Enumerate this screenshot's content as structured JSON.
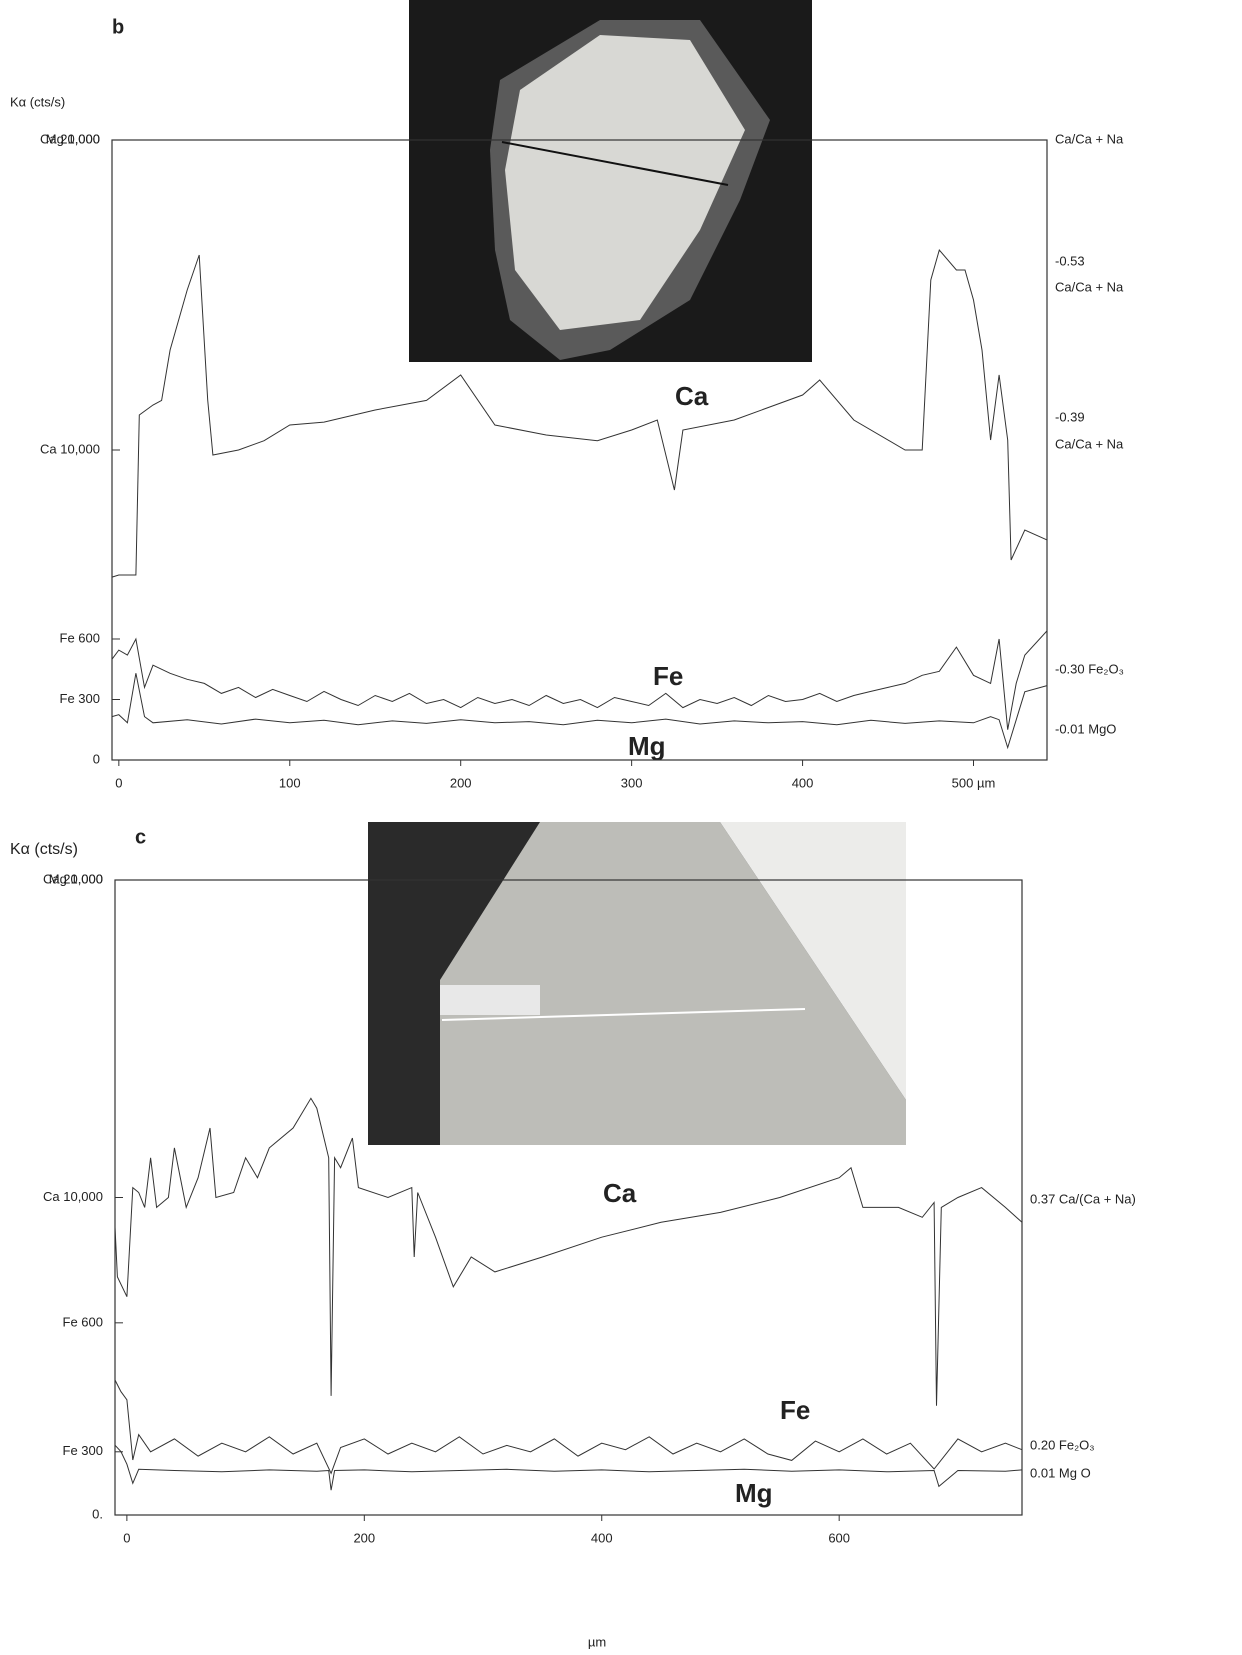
{
  "chart_data": [
    {
      "type": "line",
      "panel": "b",
      "y_label": "Kα (cts/s)",
      "xlim": [
        -4,
        543
      ],
      "xticks": [
        0,
        100,
        200,
        300,
        400,
        {
          "value": 500,
          "label": "500 µm"
        }
      ],
      "ylim": [
        0,
        20000
      ],
      "yticks": [
        {
          "value": 20000,
          "label": "Ca 20,000"
        },
        {
          "value": 10000,
          "label": "Ca 10,000"
        },
        0
      ],
      "fe_ylim": [
        0,
        3074
      ],
      "fe_yticks": [
        {
          "value": 600,
          "label": "Fe 600"
        },
        {
          "value": 300,
          "label": "Fe 300"
        }
      ],
      "mg_ylim": [
        0,
        1000
      ],
      "mg_yticks": [
        {
          "value": 1000,
          "label": "Mg 1,000"
        }
      ],
      "right_labels": [
        "Ca/Ca + Na",
        "-0.53",
        "Ca/Ca + Na",
        "-0.39",
        "Ca/Ca + Na",
        "-0.30 Fe₂O₃",
        "-0.01 MgO"
      ],
      "series": [
        {
          "name": "Ca",
          "color": "#333",
          "x": [
            -4,
            0,
            10,
            12,
            20,
            25,
            30,
            40,
            47,
            52,
            55,
            70,
            85,
            100,
            120,
            150,
            180,
            200,
            220,
            250,
            280,
            300,
            315,
            325,
            330,
            360,
            400,
            410,
            430,
            460,
            470,
            475,
            480,
            490,
            495,
            500,
            505,
            510,
            515,
            520,
            522,
            530,
            543
          ],
          "values": [
            5900,
            5968,
            5968,
            11129,
            11452,
            11600,
            13226,
            15161,
            16290,
            11613,
            9839,
            10000,
            10300,
            10806,
            10900,
            11290,
            11600,
            12419,
            10806,
            10484,
            10300,
            10645,
            10968,
            8710,
            10645,
            10968,
            11774,
            12258,
            10968,
            10000,
            10000,
            15484,
            16452,
            15806,
            15806,
            14839,
            13226,
            10323,
            12419,
            10323,
            6452,
            7419,
            7100
          ]
        },
        {
          "name": "Fe",
          "axis": "fe",
          "color": "#333",
          "x": [
            -4,
            0,
            5,
            10,
            15,
            20,
            30,
            40,
            50,
            60,
            70,
            80,
            90,
            100,
            110,
            120,
            130,
            140,
            150,
            160,
            170,
            180,
            190,
            200,
            210,
            220,
            230,
            240,
            250,
            260,
            270,
            280,
            290,
            300,
            310,
            320,
            330,
            340,
            350,
            360,
            370,
            380,
            390,
            400,
            410,
            420,
            430,
            440,
            450,
            460,
            470,
            480,
            490,
            500,
            510,
            515,
            520,
            525,
            530,
            543
          ],
          "values": [
            500,
            545,
            520,
            600,
            360,
            470,
            430,
            400,
            380,
            330,
            360,
            310,
            350,
            320,
            290,
            340,
            300,
            270,
            320,
            290,
            330,
            280,
            300,
            260,
            310,
            280,
            300,
            270,
            320,
            280,
            300,
            260,
            310,
            290,
            270,
            330,
            260,
            300,
            280,
            310,
            270,
            320,
            290,
            300,
            330,
            290,
            320,
            340,
            360,
            380,
            420,
            440,
            560,
            420,
            380,
            600,
            150,
            380,
            520,
            640
          ]
        },
        {
          "name": "Mg",
          "axis": "mg",
          "color": "#333",
          "x": [
            -4,
            0,
            5,
            10,
            15,
            20,
            40,
            60,
            80,
            100,
            120,
            140,
            160,
            180,
            200,
            220,
            240,
            260,
            280,
            300,
            320,
            340,
            360,
            380,
            400,
            420,
            440,
            460,
            480,
            500,
            510,
            515,
            520,
            530,
            543
          ],
          "values": [
            70,
            73,
            60,
            140,
            70,
            60,
            65,
            58,
            66,
            60,
            64,
            57,
            63,
            59,
            65,
            60,
            62,
            57,
            64,
            60,
            66,
            58,
            63,
            60,
            62,
            57,
            64,
            59,
            63,
            60,
            70,
            65,
            20,
            110,
            120
          ]
        }
      ]
    },
    {
      "type": "line",
      "panel": "c",
      "y_label": "Kα (cts/s)",
      "x_label": "µm",
      "xlim": [
        -10,
        754
      ],
      "xticks": [
        0,
        200,
        400,
        600
      ],
      "ylim": [
        0,
        20000
      ],
      "yticks": [
        {
          "value": 20000,
          "label": "Ca 20,000"
        },
        {
          "value": 10000,
          "label": "Ca 10,000"
        },
        {
          "value": 0,
          "label": "0."
        }
      ],
      "fe_ylim": [
        153,
        1630
      ],
      "fe_yticks": [
        {
          "value": 600,
          "label": "Fe 600"
        },
        {
          "value": 300,
          "label": "Fe 300"
        }
      ],
      "mg_ylim": [
        0,
        1000
      ],
      "mg_yticks": [
        {
          "value": 1000,
          "label": "Mg 1.000"
        }
      ],
      "right_labels": [
        "0.37 Ca/(Ca + Na)",
        "0.20 Fe₂O₃",
        "0.01 Mg O"
      ],
      "series": [
        {
          "name": "Ca",
          "color": "#333",
          "x": [
            -10,
            -8,
            0,
            5,
            10,
            15,
            20,
            25,
            35,
            40,
            50,
            60,
            70,
            75,
            90,
            100,
            110,
            120,
            140,
            155,
            160,
            170,
            172,
            175,
            180,
            190,
            195,
            220,
            240,
            242,
            245,
            260,
            275,
            290,
            310,
            350,
            400,
            450,
            500,
            550,
            600,
            610,
            620,
            650,
            670,
            680,
            682,
            686,
            700,
            720,
            740,
            754
          ],
          "values": [
            9063,
            7500,
            6875,
            10313,
            10156,
            9688,
            11250,
            9688,
            10000,
            11563,
            9688,
            10625,
            12188,
            10000,
            10156,
            11250,
            10625,
            11563,
            12188,
            13125,
            12813,
            11250,
            3750,
            11250,
            10938,
            11875,
            10313,
            10000,
            10313,
            8125,
            10156,
            8750,
            7188,
            8125,
            7656,
            8125,
            8750,
            9219,
            9531,
            10000,
            10625,
            10938,
            9688,
            9688,
            9375,
            9844,
            3438,
            9688,
            10000,
            10313,
            9688,
            9219
          ]
        },
        {
          "name": "Fe",
          "axis": "fe",
          "color": "#333",
          "x": [
            -10,
            -5,
            0,
            5,
            10,
            20,
            40,
            60,
            80,
            100,
            120,
            140,
            160,
            172,
            180,
            200,
            220,
            240,
            260,
            280,
            300,
            320,
            340,
            360,
            380,
            400,
            420,
            440,
            460,
            480,
            500,
            520,
            540,
            560,
            580,
            600,
            620,
            640,
            660,
            680,
            700,
            720,
            740,
            754
          ],
          "values": [
            467,
            440,
            421,
            281,
            340,
            300,
            330,
            290,
            320,
            300,
            335,
            295,
            320,
            250,
            310,
            330,
            295,
            320,
            300,
            335,
            295,
            315,
            300,
            330,
            290,
            320,
            305,
            335,
            295,
            320,
            300,
            330,
            295,
            280,
            325,
            300,
            330,
            295,
            320,
            260,
            330,
            300,
            320,
            305
          ]
        },
        {
          "name": "Mg",
          "axis": "mg",
          "color": "#333",
          "x": [
            -10,
            -5,
            0,
            5,
            10,
            40,
            80,
            120,
            160,
            170,
            172,
            175,
            200,
            240,
            280,
            320,
            360,
            400,
            440,
            480,
            520,
            560,
            600,
            640,
            680,
            684,
            700,
            740,
            754
          ],
          "values": [
            110,
            100,
            80,
            50,
            72,
            70,
            68,
            71,
            69,
            70,
            39,
            70,
            71,
            68,
            70,
            72,
            69,
            71,
            68,
            70,
            72,
            69,
            71,
            68,
            70,
            45,
            70,
            69,
            71
          ]
        }
      ]
    }
  ]
}
